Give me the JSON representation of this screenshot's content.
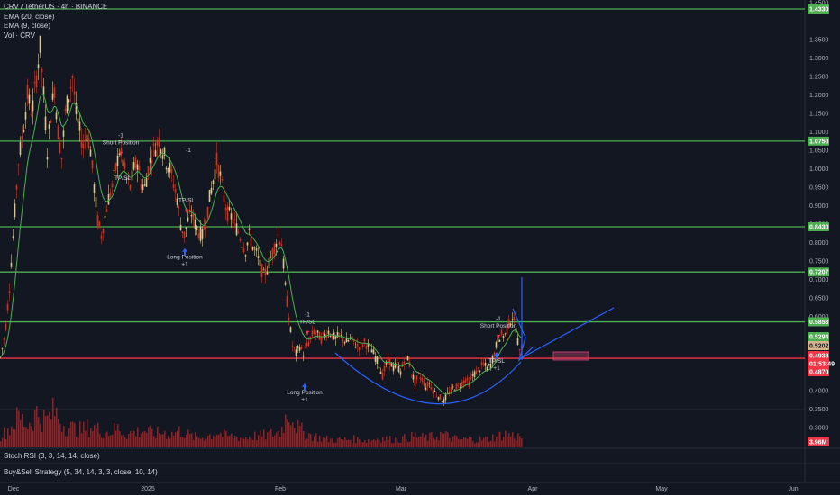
{
  "header": {
    "symbol_line": "CRV / TetherUS · 4h · BINANCE",
    "indicators": [
      "EMA (20, close)",
      "EMA (9, close)",
      "Vol · CRV"
    ]
  },
  "lower_panes": {
    "stoch_rsi": "Stoch RSI (3, 3, 14, 14, close)",
    "strategy": "Buy&Sell Strategy (5, 34, 14, 3, 3, close, 10, 14)"
  },
  "colors": {
    "background": "#131722",
    "level_line": "#4caf50",
    "support_line": "#f23645",
    "candle_up": "#d6c79b",
    "candle_down": "#c0392b",
    "ema_line": "#4caf50",
    "trend_line": "#2962ff",
    "volume": "#8e2f33"
  },
  "chart_data": {
    "type": "candlestick",
    "title": "CRV / TetherUS · 4h · BINANCE",
    "price_axis": {
      "ticks": [
        "1.4500",
        "1.3500",
        "1.3000",
        "1.2500",
        "1.2000",
        "1.1500",
        "1.1000",
        "1.0500",
        "1.0000",
        "0.9500",
        "0.9000",
        "0.8500",
        "0.8000",
        "0.7500",
        "0.7000",
        "0.6500",
        "0.6000",
        "0.5500",
        "0.5000",
        "0.4500",
        "0.4000",
        "0.3500",
        "0.3000"
      ],
      "ylim": [
        0.28,
        1.47
      ]
    },
    "time_axis": {
      "labels": [
        "Dec",
        "2025",
        "Feb",
        "Mar",
        "Apr",
        "May",
        "Jun"
      ]
    },
    "horizontal_levels": [
      {
        "value": 1.433,
        "label": "1.4330",
        "color": "#4caf50"
      },
      {
        "value": 1.075,
        "label": "1.0750",
        "color": "#4caf50"
      },
      {
        "value": 0.843,
        "label": "0.8430",
        "color": "#4caf50"
      },
      {
        "value": 0.7207,
        "label": "0.7207",
        "color": "#4caf50"
      },
      {
        "value": 0.5858,
        "label": "0.5858",
        "color": "#4caf50"
      },
      {
        "value": 0.487,
        "label": "0.4870",
        "color": "#f23645"
      }
    ],
    "price_badges": [
      {
        "value": 0.5294,
        "label": "0.5294",
        "bg": "#4caf50",
        "fg": "#ffffff"
      },
      {
        "value": 0.5202,
        "label": "0.5202",
        "bg": "#d6b58c",
        "fg": "#131722"
      },
      {
        "value": 0.4938,
        "label": "0.4938",
        "bg": "#f23645",
        "fg": "#ffffff"
      },
      {
        "value": 0.479,
        "label": "01:53:49",
        "bg": "#f23645",
        "fg": "#ffffff"
      },
      {
        "value": 0.465,
        "label": "0.4870",
        "bg": "#f23645",
        "fg": "#ffffff"
      }
    ],
    "volume_badge": "3.96M",
    "price_path": [
      [
        0,
        0.49
      ],
      [
        5,
        0.55
      ],
      [
        10,
        0.68
      ],
      [
        15,
        0.85
      ],
      [
        20,
        1.02
      ],
      [
        25,
        1.1
      ],
      [
        30,
        1.2
      ],
      [
        35,
        1.15
      ],
      [
        40,
        1.25
      ],
      [
        44,
        1.33
      ],
      [
        48,
        1.2
      ],
      [
        52,
        1.05
      ],
      [
        56,
        1.15
      ],
      [
        60,
        1.22
      ],
      [
        64,
        1.1
      ],
      [
        68,
        1.03
      ],
      [
        72,
        1.15
      ],
      [
        76,
        1.2
      ],
      [
        80,
        1.25
      ],
      [
        84,
        1.15
      ],
      [
        88,
        1.1
      ],
      [
        92,
        1.06
      ],
      [
        96,
        1.1
      ],
      [
        100,
        1.05
      ],
      [
        104,
        0.95
      ],
      [
        108,
        0.86
      ],
      [
        112,
        0.82
      ],
      [
        116,
        0.87
      ],
      [
        120,
        0.92
      ],
      [
        124,
        0.95
      ],
      [
        128,
        1.0
      ],
      [
        132,
        1.05
      ],
      [
        136,
        1.02
      ],
      [
        140,
        0.97
      ],
      [
        144,
        0.95
      ],
      [
        148,
        1.0
      ],
      [
        152,
        1.02
      ],
      [
        156,
        0.96
      ],
      [
        160,
        0.95
      ],
      [
        164,
        1.0
      ],
      [
        168,
        1.04
      ],
      [
        172,
        1.06
      ],
      [
        176,
        1.08
      ],
      [
        180,
        1.05
      ],
      [
        184,
        1.02
      ],
      [
        188,
        1.0
      ],
      [
        192,
        0.96
      ],
      [
        196,
        0.92
      ],
      [
        200,
        0.85
      ],
      [
        204,
        0.82
      ],
      [
        208,
        0.86
      ],
      [
        212,
        0.88
      ],
      [
        216,
        0.85
      ],
      [
        220,
        0.83
      ],
      [
        224,
        0.82
      ],
      [
        228,
        0.86
      ],
      [
        232,
        0.92
      ],
      [
        236,
        0.97
      ],
      [
        240,
        1.02
      ],
      [
        244,
        0.98
      ],
      [
        248,
        0.92
      ],
      [
        252,
        0.88
      ],
      [
        256,
        0.87
      ],
      [
        260,
        0.85
      ],
      [
        264,
        0.83
      ],
      [
        268,
        0.8
      ],
      [
        272,
        0.78
      ],
      [
        276,
        0.82
      ],
      [
        280,
        0.79
      ],
      [
        284,
        0.77
      ],
      [
        288,
        0.74
      ],
      [
        292,
        0.71
      ],
      [
        296,
        0.73
      ],
      [
        300,
        0.76
      ],
      [
        304,
        0.79
      ],
      [
        308,
        0.82
      ],
      [
        312,
        0.8
      ],
      [
        316,
        0.68
      ],
      [
        320,
        0.6
      ],
      [
        324,
        0.52
      ],
      [
        328,
        0.5
      ],
      [
        332,
        0.52
      ],
      [
        336,
        0.5
      ],
      [
        340,
        0.52
      ],
      [
        344,
        0.54
      ],
      [
        348,
        0.56
      ],
      [
        352,
        0.55
      ],
      [
        356,
        0.54
      ],
      [
        360,
        0.55
      ],
      [
        364,
        0.56
      ],
      [
        368,
        0.55
      ],
      [
        372,
        0.54
      ],
      [
        376,
        0.55
      ],
      [
        380,
        0.54
      ],
      [
        384,
        0.53
      ],
      [
        388,
        0.54
      ],
      [
        392,
        0.53
      ],
      [
        396,
        0.52
      ],
      [
        400,
        0.52
      ],
      [
        404,
        0.53
      ],
      [
        408,
        0.52
      ],
      [
        412,
        0.51
      ],
      [
        416,
        0.49
      ],
      [
        420,
        0.47
      ],
      [
        424,
        0.44
      ],
      [
        428,
        0.47
      ],
      [
        432,
        0.48
      ],
      [
        436,
        0.46
      ],
      [
        440,
        0.47
      ],
      [
        444,
        0.45
      ],
      [
        448,
        0.48
      ],
      [
        452,
        0.49
      ],
      [
        456,
        0.45
      ],
      [
        460,
        0.42
      ],
      [
        464,
        0.44
      ],
      [
        468,
        0.43
      ],
      [
        472,
        0.41
      ],
      [
        476,
        0.42
      ],
      [
        480,
        0.4
      ],
      [
        484,
        0.39
      ],
      [
        488,
        0.38
      ],
      [
        492,
        0.37
      ],
      [
        496,
        0.39
      ],
      [
        500,
        0.4
      ],
      [
        504,
        0.41
      ],
      [
        508,
        0.41
      ],
      [
        512,
        0.42
      ],
      [
        516,
        0.43
      ],
      [
        520,
        0.42
      ],
      [
        524,
        0.44
      ],
      [
        528,
        0.45
      ],
      [
        532,
        0.46
      ],
      [
        536,
        0.47
      ],
      [
        540,
        0.46
      ],
      [
        544,
        0.47
      ],
      [
        548,
        0.5
      ],
      [
        552,
        0.54
      ],
      [
        556,
        0.55
      ],
      [
        560,
        0.55
      ],
      [
        564,
        0.58
      ],
      [
        568,
        0.6
      ],
      [
        572,
        0.57
      ],
      [
        576,
        0.5
      ],
      [
        578,
        0.52
      ]
    ],
    "volume_series": [
      [
        0,
        0.3
      ],
      [
        10,
        0.5
      ],
      [
        20,
        0.8
      ],
      [
        30,
        0.6
      ],
      [
        40,
        0.9
      ],
      [
        50,
        0.7
      ],
      [
        60,
        0.95
      ],
      [
        70,
        0.6
      ],
      [
        80,
        0.5
      ],
      [
        90,
        0.45
      ],
      [
        100,
        0.55
      ],
      [
        110,
        0.45
      ],
      [
        120,
        0.4
      ],
      [
        130,
        0.5
      ],
      [
        140,
        0.35
      ],
      [
        150,
        0.4
      ],
      [
        160,
        0.45
      ],
      [
        170,
        0.35
      ],
      [
        180,
        0.4
      ],
      [
        190,
        0.35
      ],
      [
        200,
        0.45
      ],
      [
        210,
        0.3
      ],
      [
        220,
        0.25
      ],
      [
        230,
        0.3
      ],
      [
        240,
        0.4
      ],
      [
        250,
        0.3
      ],
      [
        260,
        0.28
      ],
      [
        270,
        0.25
      ],
      [
        280,
        0.3
      ],
      [
        290,
        0.3
      ],
      [
        300,
        0.35
      ],
      [
        310,
        0.4
      ],
      [
        320,
        1.0
      ],
      [
        330,
        0.5
      ],
      [
        340,
        0.35
      ],
      [
        350,
        0.28
      ],
      [
        360,
        0.22
      ],
      [
        370,
        0.2
      ],
      [
        380,
        0.2
      ],
      [
        390,
        0.22
      ],
      [
        400,
        0.2
      ],
      [
        410,
        0.18
      ],
      [
        420,
        0.25
      ],
      [
        430,
        0.22
      ],
      [
        440,
        0.2
      ],
      [
        450,
        0.25
      ],
      [
        460,
        0.3
      ],
      [
        470,
        0.25
      ],
      [
        480,
        0.28
      ],
      [
        490,
        0.35
      ],
      [
        500,
        0.25
      ],
      [
        510,
        0.2
      ],
      [
        520,
        0.22
      ],
      [
        530,
        0.2
      ],
      [
        540,
        0.22
      ],
      [
        550,
        0.3
      ],
      [
        560,
        0.35
      ],
      [
        570,
        0.3
      ],
      [
        578,
        0.28
      ]
    ],
    "signals": [
      {
        "label": "-1 Short Position",
        "x": 134,
        "price": 1.085,
        "dir": "down"
      },
      {
        "label": "TP/SL",
        "x": 136,
        "price": 0.97,
        "dir": "none"
      },
      {
        "label": "-1",
        "x": 209,
        "price": 1.045,
        "dir": "none"
      },
      {
        "label": "TP/SL",
        "x": 207,
        "price": 0.91,
        "dir": "down"
      },
      {
        "label": "Long Position +1",
        "x": 205,
        "price": 0.756,
        "dir": "up"
      },
      {
        "label": "-1 TP/SL",
        "x": 341,
        "price": 0.6,
        "dir": "down"
      },
      {
        "label": "Long Position +1",
        "x": 338,
        "price": 0.39,
        "dir": "up"
      },
      {
        "label": "-1 Short Position",
        "x": 553,
        "price": 0.59,
        "dir": "down"
      },
      {
        "label": "TP/SL +1",
        "x": 551,
        "price": 0.475,
        "dir": "up"
      }
    ],
    "drawings": {
      "cup_arc": "rounded bottom from ~Feb to late Mar",
      "target_zone": "pink rectangle near 0.50"
    }
  }
}
